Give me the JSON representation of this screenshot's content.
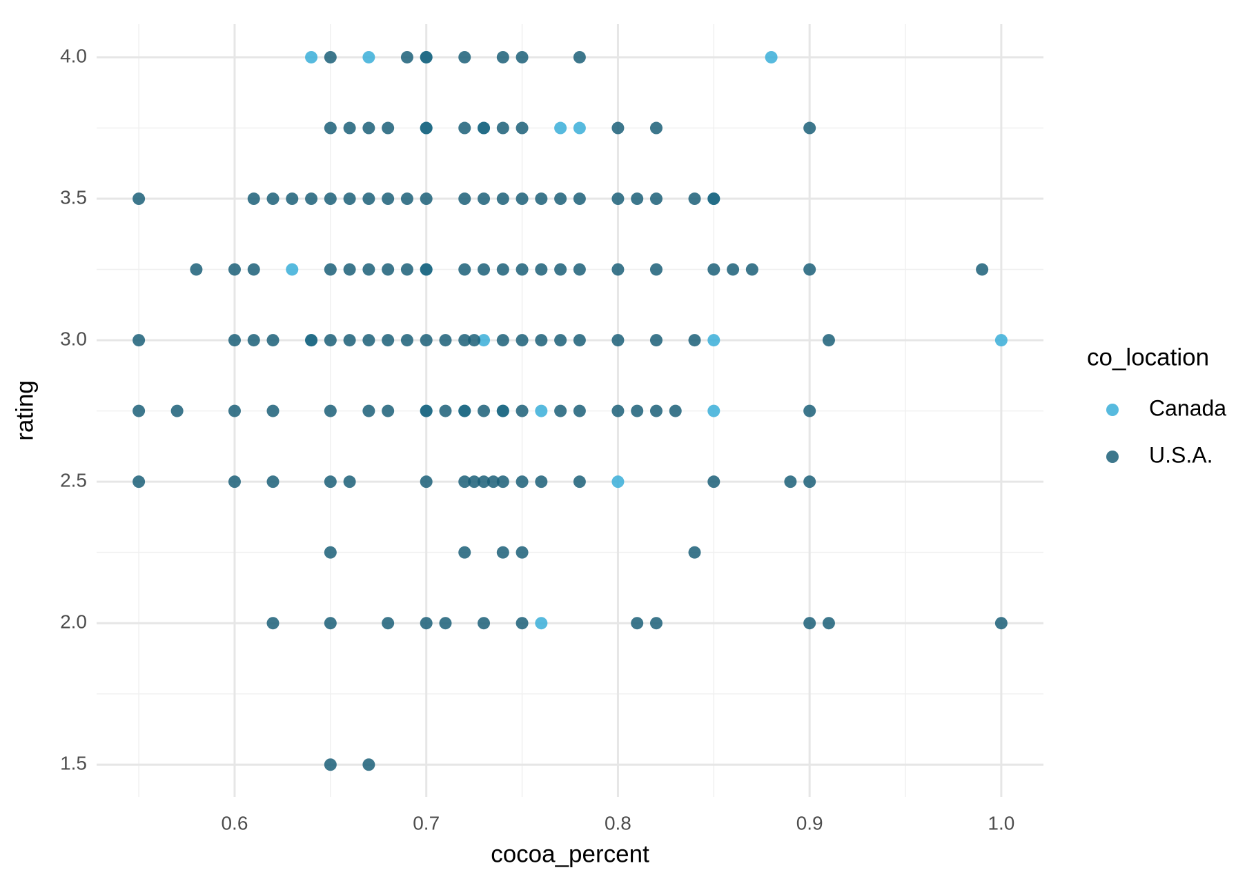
{
  "chart_data": {
    "type": "scatter",
    "x_label": "cocoa_percent",
    "y_label": "rating",
    "legend_title": "co_location",
    "xlim": [
      0.528,
      1.022
    ],
    "ylim": [
      1.386,
      4.117
    ],
    "xticks": [
      0.6,
      0.7,
      0.8,
      0.9,
      {
        "value": 1,
        "label": "1.0"
      }
    ],
    "yticks": [
      1.5,
      {
        "value": 2,
        "label": "2.0"
      },
      2.5,
      {
        "value": 3,
        "label": "3.0"
      },
      3.5,
      {
        "value": 4,
        "label": "4.0"
      }
    ],
    "xminor": [
      0.55,
      0.65,
      0.75,
      0.85,
      0.95
    ],
    "yminor": [
      1.75,
      2.25,
      2.75,
      3.25,
      3.75
    ],
    "grid": true,
    "legend": "right",
    "series": [
      {
        "name": "Canada",
        "color": "#3aaed8",
        "x": [
          0.64,
          0.67,
          0.7,
          0.88,
          0.7,
          0.73,
          0.77,
          0.78,
          0.85,
          0.63,
          0.7,
          0.64,
          0.73,
          0.85,
          1.0,
          0.7,
          0.72,
          0.74,
          0.76,
          0.85,
          0.8,
          0.76
        ],
        "y": [
          4,
          4,
          4,
          4,
          3.75,
          3.75,
          3.75,
          3.75,
          3.5,
          3.25,
          3.25,
          3,
          3,
          3,
          3,
          2.75,
          2.75,
          2.75,
          2.75,
          2.75,
          2.5,
          2
        ]
      },
      {
        "name": "U.S.A.",
        "color": "#1b5f78",
        "x": [
          0.65,
          0.69,
          0.7,
          0.72,
          0.74,
          0.75,
          0.78,
          0.65,
          0.66,
          0.67,
          0.68,
          0.7,
          0.72,
          0.73,
          0.74,
          0.75,
          0.8,
          0.82,
          0.9,
          0.55,
          0.61,
          0.62,
          0.63,
          0.64,
          0.65,
          0.66,
          0.67,
          0.68,
          0.69,
          0.7,
          0.72,
          0.73,
          0.74,
          0.75,
          0.76,
          0.77,
          0.78,
          0.8,
          0.81,
          0.82,
          0.84,
          0.85,
          0.58,
          0.6,
          0.61,
          0.65,
          0.66,
          0.67,
          0.68,
          0.69,
          0.7,
          0.72,
          0.73,
          0.74,
          0.75,
          0.76,
          0.77,
          0.78,
          0.8,
          0.82,
          0.85,
          0.86,
          0.87,
          0.9,
          0.99,
          0.55,
          0.6,
          0.61,
          0.62,
          0.64,
          0.65,
          0.66,
          0.67,
          0.68,
          0.69,
          0.7,
          0.71,
          0.72,
          0.725,
          0.74,
          0.75,
          0.76,
          0.77,
          0.78,
          0.8,
          0.82,
          0.84,
          0.91,
          0.55,
          0.57,
          0.6,
          0.62,
          0.65,
          0.67,
          0.68,
          0.7,
          0.71,
          0.72,
          0.73,
          0.74,
          0.75,
          0.77,
          0.78,
          0.8,
          0.81,
          0.82,
          0.83,
          0.9,
          0.55,
          0.6,
          0.62,
          0.65,
          0.66,
          0.7,
          0.72,
          0.725,
          0.73,
          0.735,
          0.74,
          0.75,
          0.76,
          0.78,
          0.85,
          0.89,
          0.9,
          0.65,
          0.72,
          0.74,
          0.75,
          0.84,
          0.62,
          0.65,
          0.68,
          0.7,
          0.71,
          0.73,
          0.75,
          0.81,
          0.82,
          0.9,
          0.91,
          1.0,
          0.65,
          0.67
        ],
        "y": [
          4,
          4,
          4,
          4,
          4,
          4,
          4,
          3.75,
          3.75,
          3.75,
          3.75,
          3.75,
          3.75,
          3.75,
          3.75,
          3.75,
          3.75,
          3.75,
          3.75,
          3.5,
          3.5,
          3.5,
          3.5,
          3.5,
          3.5,
          3.5,
          3.5,
          3.5,
          3.5,
          3.5,
          3.5,
          3.5,
          3.5,
          3.5,
          3.5,
          3.5,
          3.5,
          3.5,
          3.5,
          3.5,
          3.5,
          3.5,
          3.25,
          3.25,
          3.25,
          3.25,
          3.25,
          3.25,
          3.25,
          3.25,
          3.25,
          3.25,
          3.25,
          3.25,
          3.25,
          3.25,
          3.25,
          3.25,
          3.25,
          3.25,
          3.25,
          3.25,
          3.25,
          3.25,
          3.25,
          3,
          3,
          3,
          3,
          3,
          3,
          3,
          3,
          3,
          3,
          3,
          3,
          3,
          3,
          3,
          3,
          3,
          3,
          3,
          3,
          3,
          3,
          3,
          2.75,
          2.75,
          2.75,
          2.75,
          2.75,
          2.75,
          2.75,
          2.75,
          2.75,
          2.75,
          2.75,
          2.75,
          2.75,
          2.75,
          2.75,
          2.75,
          2.75,
          2.75,
          2.75,
          2.75,
          2.5,
          2.5,
          2.5,
          2.5,
          2.5,
          2.5,
          2.5,
          2.5,
          2.5,
          2.5,
          2.5,
          2.5,
          2.5,
          2.5,
          2.5,
          2.5,
          2.5,
          2.25,
          2.25,
          2.25,
          2.25,
          2.25,
          2,
          2,
          2,
          2,
          2,
          2,
          2,
          2,
          2,
          2,
          2,
          2,
          1.5,
          1.5
        ]
      }
    ]
  }
}
